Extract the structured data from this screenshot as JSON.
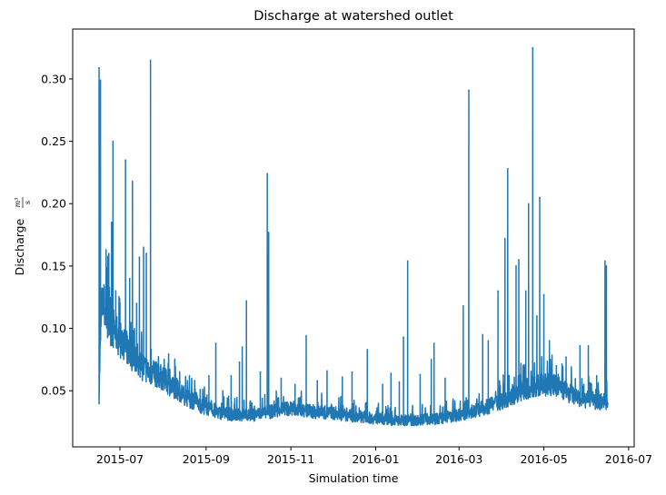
{
  "chart_data": {
    "type": "line",
    "title": "Discharge at watershed outlet",
    "xlabel": "Simulation time",
    "ylabel": "Discharge",
    "ylabel_unit_numerator": "m³",
    "ylabel_unit_denominator": "s",
    "xlim": [
      "2015-05-28",
      "2016-07-05"
    ],
    "ylim": [
      0.005,
      0.34
    ],
    "x_ticks": [
      "2015-07",
      "2015-09",
      "2015-11",
      "2016-01",
      "2016-03",
      "2016-05",
      "2016-07"
    ],
    "y_ticks": [
      0.05,
      0.1,
      0.15,
      0.2,
      0.25,
      0.3
    ],
    "y_tick_labels": [
      "0.05",
      "0.10",
      "0.15",
      "0.20",
      "0.25",
      "0.30"
    ],
    "grid": false,
    "legend": "none",
    "series_color": "#1f77b4",
    "series": [
      {
        "name": "",
        "x": [
          "2015-06-16",
          "2015-06-17",
          "2015-06-18",
          "2015-06-19",
          "2015-06-20",
          "2015-06-21",
          "2015-06-23",
          "2015-06-25",
          "2015-06-27",
          "2015-06-29",
          "2015-07-01",
          "2015-07-03",
          "2015-07-05",
          "2015-07-08",
          "2015-07-11",
          "2015-07-14",
          "2015-07-17",
          "2015-07-20",
          "2015-07-23",
          "2015-07-27",
          "2015-08-01",
          "2015-08-05",
          "2015-08-10",
          "2015-08-15",
          "2015-08-20",
          "2015-08-25",
          "2015-08-30",
          "2015-09-05",
          "2015-09-10",
          "2015-09-16",
          "2015-09-22",
          "2015-09-28",
          "2015-10-04",
          "2015-10-10",
          "2015-10-16",
          "2015-10-22",
          "2015-10-28",
          "2015-11-03",
          "2015-11-09",
          "2015-11-15",
          "2015-11-21",
          "2015-11-27",
          "2015-12-03",
          "2015-12-09",
          "2015-12-15",
          "2015-12-21",
          "2015-12-27",
          "2016-01-02",
          "2016-01-08",
          "2016-01-14",
          "2016-01-20",
          "2016-01-26",
          "2016-02-01",
          "2016-02-07",
          "2016-02-13",
          "2016-02-19",
          "2016-02-25",
          "2016-03-02",
          "2016-03-08",
          "2016-03-14",
          "2016-03-20",
          "2016-03-26",
          "2016-04-01",
          "2016-04-07",
          "2016-04-13",
          "2016-04-19",
          "2016-04-25",
          "2016-05-01",
          "2016-05-07",
          "2016-05-13",
          "2016-05-19",
          "2016-05-25",
          "2016-05-31",
          "2016-06-06",
          "2016-06-12",
          "2016-06-16"
        ],
        "base": [
          0.045,
          0.09,
          0.11,
          0.115,
          0.11,
          0.105,
          0.1,
          0.097,
          0.094,
          0.09,
          0.087,
          0.084,
          0.081,
          0.077,
          0.073,
          0.069,
          0.066,
          0.064,
          0.062,
          0.06,
          0.057,
          0.053,
          0.049,
          0.045,
          0.041,
          0.038,
          0.035,
          0.033,
          0.031,
          0.03,
          0.029,
          0.029,
          0.029,
          0.03,
          0.031,
          0.033,
          0.034,
          0.034,
          0.033,
          0.032,
          0.031,
          0.031,
          0.03,
          0.029,
          0.028,
          0.028,
          0.027,
          0.026,
          0.026,
          0.025,
          0.025,
          0.025,
          0.025,
          0.026,
          0.026,
          0.027,
          0.028,
          0.029,
          0.031,
          0.033,
          0.035,
          0.037,
          0.04,
          0.043,
          0.046,
          0.049,
          0.051,
          0.052,
          0.052,
          0.05,
          0.046,
          0.043,
          0.041,
          0.04,
          0.039,
          0.039
        ],
        "peaks": [
          {
            "x": "2015-06-16",
            "y": 0.309
          },
          {
            "x": "2015-06-17",
            "y": 0.299
          },
          {
            "x": "2015-06-19",
            "y": 0.13
          },
          {
            "x": "2015-06-21",
            "y": 0.163
          },
          {
            "x": "2015-06-23",
            "y": 0.16
          },
          {
            "x": "2015-06-25",
            "y": 0.185
          },
          {
            "x": "2015-06-26",
            "y": 0.25
          },
          {
            "x": "2015-06-28",
            "y": 0.13
          },
          {
            "x": "2015-07-01",
            "y": 0.12
          },
          {
            "x": "2015-07-05",
            "y": 0.235
          },
          {
            "x": "2015-07-08",
            "y": 0.14
          },
          {
            "x": "2015-07-10",
            "y": 0.218
          },
          {
            "x": "2015-07-13",
            "y": 0.12
          },
          {
            "x": "2015-07-15",
            "y": 0.157
          },
          {
            "x": "2015-07-18",
            "y": 0.165
          },
          {
            "x": "2015-07-20",
            "y": 0.16
          },
          {
            "x": "2015-07-23",
            "y": 0.315
          },
          {
            "x": "2015-07-30",
            "y": 0.063
          },
          {
            "x": "2015-08-10",
            "y": 0.063
          },
          {
            "x": "2015-08-20",
            "y": 0.062
          },
          {
            "x": "2015-09-03",
            "y": 0.062
          },
          {
            "x": "2015-09-08",
            "y": 0.088
          },
          {
            "x": "2015-09-13",
            "y": 0.05
          },
          {
            "x": "2015-09-19",
            "y": 0.062
          },
          {
            "x": "2015-09-25",
            "y": 0.073
          },
          {
            "x": "2015-09-27",
            "y": 0.085
          },
          {
            "x": "2015-09-30",
            "y": 0.122
          },
          {
            "x": "2015-10-10",
            "y": 0.065
          },
          {
            "x": "2015-10-15",
            "y": 0.224
          },
          {
            "x": "2015-10-16",
            "y": 0.177
          },
          {
            "x": "2015-10-25",
            "y": 0.06
          },
          {
            "x": "2015-11-04",
            "y": 0.055
          },
          {
            "x": "2015-11-12",
            "y": 0.094
          },
          {
            "x": "2015-11-20",
            "y": 0.058
          },
          {
            "x": "2015-11-27",
            "y": 0.066
          },
          {
            "x": "2015-12-08",
            "y": 0.061
          },
          {
            "x": "2015-12-15",
            "y": 0.065
          },
          {
            "x": "2015-12-26",
            "y": 0.083
          },
          {
            "x": "2016-01-06",
            "y": 0.055
          },
          {
            "x": "2016-01-12",
            "y": 0.064
          },
          {
            "x": "2016-01-18",
            "y": 0.057
          },
          {
            "x": "2016-01-21",
            "y": 0.093
          },
          {
            "x": "2016-01-24",
            "y": 0.154
          },
          {
            "x": "2016-02-02",
            "y": 0.063
          },
          {
            "x": "2016-02-10",
            "y": 0.075
          },
          {
            "x": "2016-02-12",
            "y": 0.088
          },
          {
            "x": "2016-02-20",
            "y": 0.06
          },
          {
            "x": "2016-03-04",
            "y": 0.118
          },
          {
            "x": "2016-03-08",
            "y": 0.291
          },
          {
            "x": "2016-03-18",
            "y": 0.095
          },
          {
            "x": "2016-03-22",
            "y": 0.09
          },
          {
            "x": "2016-03-29",
            "y": 0.13
          },
          {
            "x": "2016-04-03",
            "y": 0.172
          },
          {
            "x": "2016-04-05",
            "y": 0.228
          },
          {
            "x": "2016-04-11",
            "y": 0.15
          },
          {
            "x": "2016-04-13",
            "y": 0.155
          },
          {
            "x": "2016-04-18",
            "y": 0.13
          },
          {
            "x": "2016-04-20",
            "y": 0.2
          },
          {
            "x": "2016-04-23",
            "y": 0.325
          },
          {
            "x": "2016-04-26",
            "y": 0.11
          },
          {
            "x": "2016-04-28",
            "y": 0.205
          },
          {
            "x": "2016-05-01",
            "y": 0.127
          },
          {
            "x": "2016-05-05",
            "y": 0.09
          },
          {
            "x": "2016-05-10",
            "y": 0.07
          },
          {
            "x": "2016-05-17",
            "y": 0.077
          },
          {
            "x": "2016-05-27",
            "y": 0.086
          },
          {
            "x": "2016-06-02",
            "y": 0.086
          },
          {
            "x": "2016-06-08",
            "y": 0.062
          },
          {
            "x": "2016-06-14",
            "y": 0.154
          },
          {
            "x": "2016-06-15",
            "y": 0.15
          }
        ]
      }
    ]
  }
}
